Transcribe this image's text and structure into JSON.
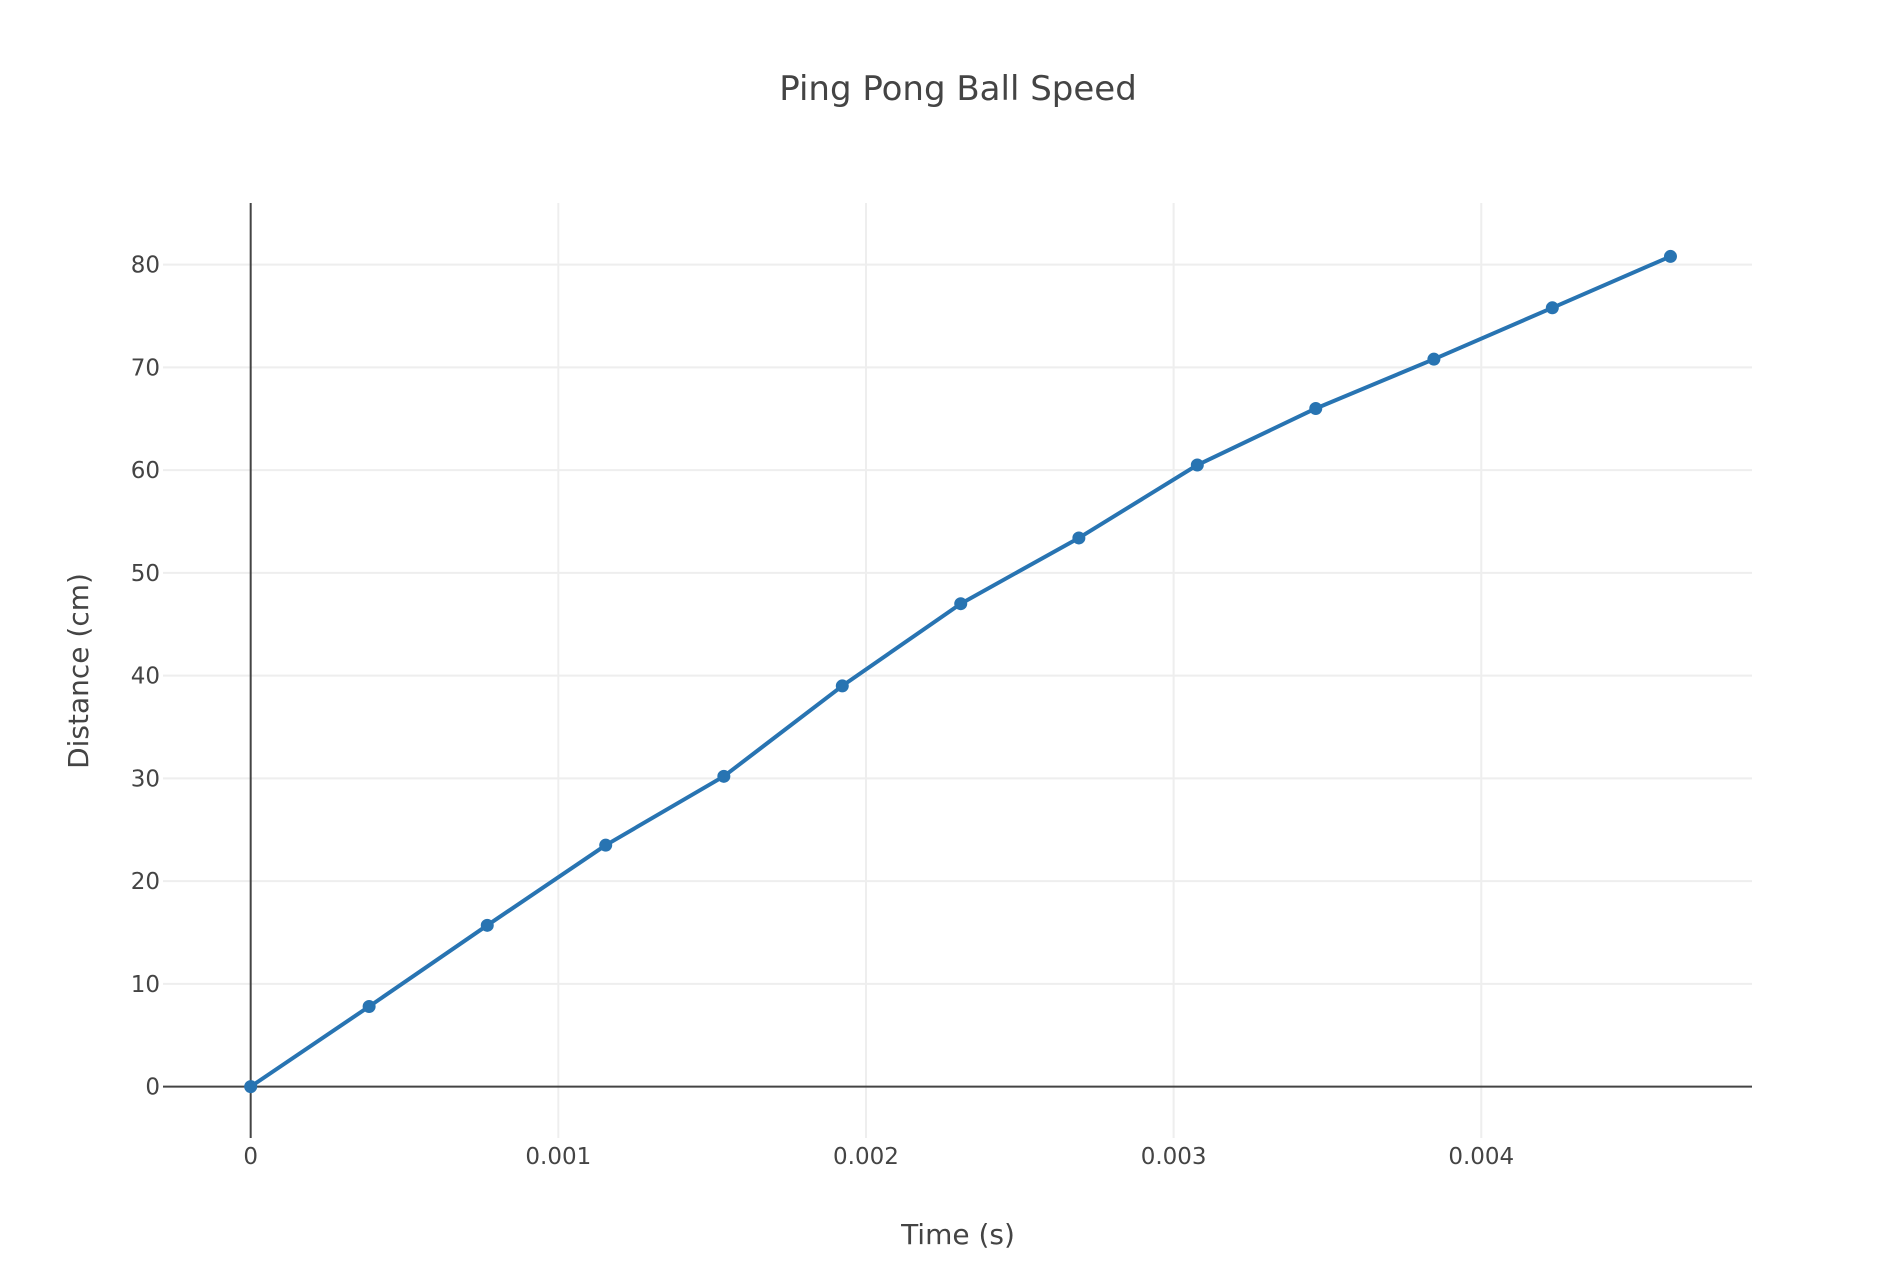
{
  "chart_data": {
    "type": "line",
    "title": "Ping Pong Ball Speed",
    "xlabel": "Time (s)",
    "ylabel": "Distance (cm)",
    "xlim": [
      -0.000285,
      0.00488
    ],
    "ylim": [
      -5,
      86
    ],
    "grid": true,
    "x_ticks": [
      {
        "value": 0,
        "label": "0"
      },
      {
        "value": 0.001,
        "label": "0.001"
      },
      {
        "value": 0.002,
        "label": "0.002"
      },
      {
        "value": 0.003,
        "label": "0.003"
      },
      {
        "value": 0.004,
        "label": "0.004"
      }
    ],
    "y_ticks": [
      {
        "value": 0,
        "label": "0"
      },
      {
        "value": 10,
        "label": "10"
      },
      {
        "value": 20,
        "label": "20"
      },
      {
        "value": 30,
        "label": "30"
      },
      {
        "value": 40,
        "label": "40"
      },
      {
        "value": 50,
        "label": "50"
      },
      {
        "value": 60,
        "label": "60"
      },
      {
        "value": 70,
        "label": "70"
      },
      {
        "value": 80,
        "label": "80"
      }
    ],
    "series": [
      {
        "color": "#2874b2",
        "x": [
          0,
          0.000385,
          0.000769,
          0.001154,
          0.001538,
          0.001923,
          0.002308,
          0.002692,
          0.003077,
          0.003462,
          0.003846,
          0.004231,
          0.004615
        ],
        "y": [
          0,
          7.8,
          15.7,
          23.5,
          30.2,
          39.0,
          47.0,
          53.4,
          60.5,
          66.0,
          70.8,
          75.8,
          80.8
        ]
      }
    ]
  }
}
